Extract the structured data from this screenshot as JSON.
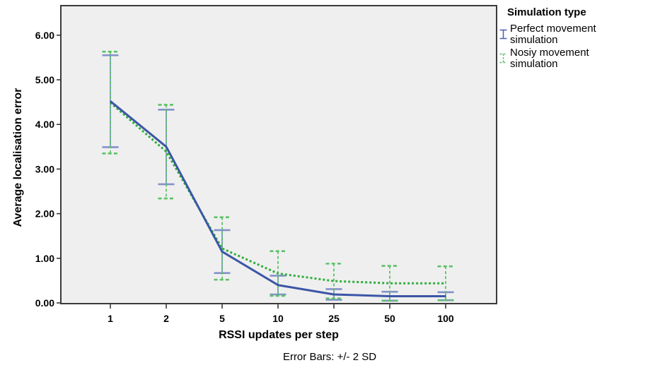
{
  "chart_data": {
    "type": "line",
    "title": "",
    "xlabel": "RSSI updates per step",
    "ylabel": "Average localisation error",
    "caption": "Error Bars: +/- 2 SD",
    "x_categories": [
      "1",
      "2",
      "5",
      "10",
      "25",
      "50",
      "100"
    ],
    "y_ticks": [
      "0.00",
      "1.00",
      "2.00",
      "3.00",
      "4.00",
      "5.00",
      "6.00"
    ],
    "ylim": [
      0,
      6.65
    ],
    "grid": false,
    "plot_background": "#EFEFEF",
    "frame_color": "#3A3A3A",
    "error_bar_definition": "+/- 2 SD",
    "legend_position": "right",
    "series": [
      {
        "key": "perfect",
        "name": "Perfect movement simulation",
        "style": "solid",
        "color": "#3B56A6",
        "bar_color": "#8292C9",
        "means": [
          4.52,
          3.5,
          1.15,
          0.4,
          0.19,
          0.15,
          0.15
        ],
        "upper": [
          5.55,
          4.33,
          1.63,
          0.61,
          0.31,
          0.25,
          0.24
        ],
        "lower": [
          3.49,
          2.66,
          0.67,
          0.19,
          0.07,
          0.05,
          0.06
        ]
      },
      {
        "key": "noisy",
        "name": "Nosiy movement simulation",
        "style": "dotted",
        "color": "#2FAE3C",
        "bar_color": "#5BC168",
        "means": [
          4.49,
          3.39,
          1.22,
          0.66,
          0.49,
          0.44,
          0.44
        ],
        "upper": [
          5.63,
          4.44,
          1.92,
          1.16,
          0.88,
          0.83,
          0.82
        ],
        "lower": [
          3.35,
          2.34,
          0.52,
          0.16,
          0.1,
          0.05,
          0.06
        ]
      }
    ]
  },
  "legend": {
    "title": "Simulation type",
    "items": [
      {
        "label": "Perfect movement simulation",
        "icon": "error-bar-icon"
      },
      {
        "label": "Nosiy movement simulation",
        "icon": "error-bar-icon"
      }
    ]
  }
}
